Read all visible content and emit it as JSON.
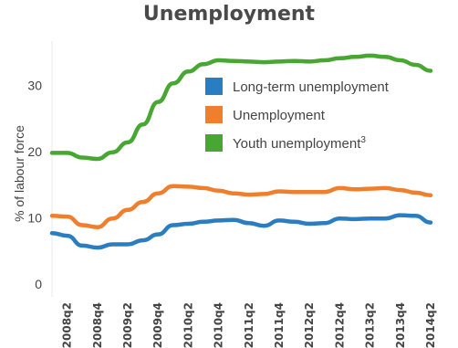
{
  "chart_data": {
    "type": "line",
    "title": "Unemployment",
    "ylabel": "% of labour force",
    "xlabel": "",
    "ylim": [
      0,
      36
    ],
    "yticks": [
      0,
      10,
      20,
      30
    ],
    "x": [
      "2008q1",
      "2008q2",
      "2008q3",
      "2008q4",
      "2009q1",
      "2009q2",
      "2009q3",
      "2009q4",
      "2010q1",
      "2010q2",
      "2010q3",
      "2010q4",
      "2011q1",
      "2011q2",
      "2011q3",
      "2011q4",
      "2012q1",
      "2012q2",
      "2012q3",
      "2012q4",
      "2013q1",
      "2013q2",
      "2013q3",
      "2013q4",
      "2014q1",
      "2014q2"
    ],
    "xtick_labels": [
      "2008q2",
      "2008q4",
      "2009q2",
      "2009q4",
      "2010q2",
      "2010q4",
      "2011q2",
      "2011q4",
      "2012q2",
      "2012q4",
      "2013q2",
      "2013q4",
      "2014q2"
    ],
    "series": [
      {
        "name": "Long-term unemployment",
        "color": "#2b7dc1",
        "values": [
          7.7,
          7.3,
          5.8,
          5.5,
          6.0,
          6.0,
          6.6,
          7.5,
          8.9,
          9.1,
          9.4,
          9.6,
          9.7,
          9.2,
          8.8,
          9.6,
          9.4,
          9.1,
          9.2,
          9.9,
          9.8,
          9.9,
          9.9,
          10.4,
          10.3,
          9.3
        ]
      },
      {
        "name": "Unemployment",
        "color": "#f07f2d",
        "values": [
          10.3,
          10.2,
          8.9,
          8.6,
          9.9,
          11.2,
          12.4,
          13.7,
          14.8,
          14.7,
          14.5,
          14.1,
          13.7,
          13.5,
          13.6,
          14.0,
          13.9,
          13.9,
          13.9,
          14.5,
          14.3,
          14.4,
          14.5,
          14.2,
          13.8,
          13.4
        ]
      },
      {
        "name": "Youth unemployment",
        "legend_suffix": "3",
        "color": "#47a732",
        "values": [
          19.8,
          19.8,
          19.1,
          18.9,
          19.9,
          21.4,
          24.1,
          27.5,
          30.3,
          32.1,
          33.2,
          33.8,
          33.7,
          33.6,
          33.5,
          33.6,
          33.7,
          33.6,
          33.8,
          34.1,
          34.3,
          34.5,
          34.3,
          33.8,
          33.1,
          32.2
        ]
      }
    ],
    "legend_position": "top-right",
    "grid": false
  }
}
